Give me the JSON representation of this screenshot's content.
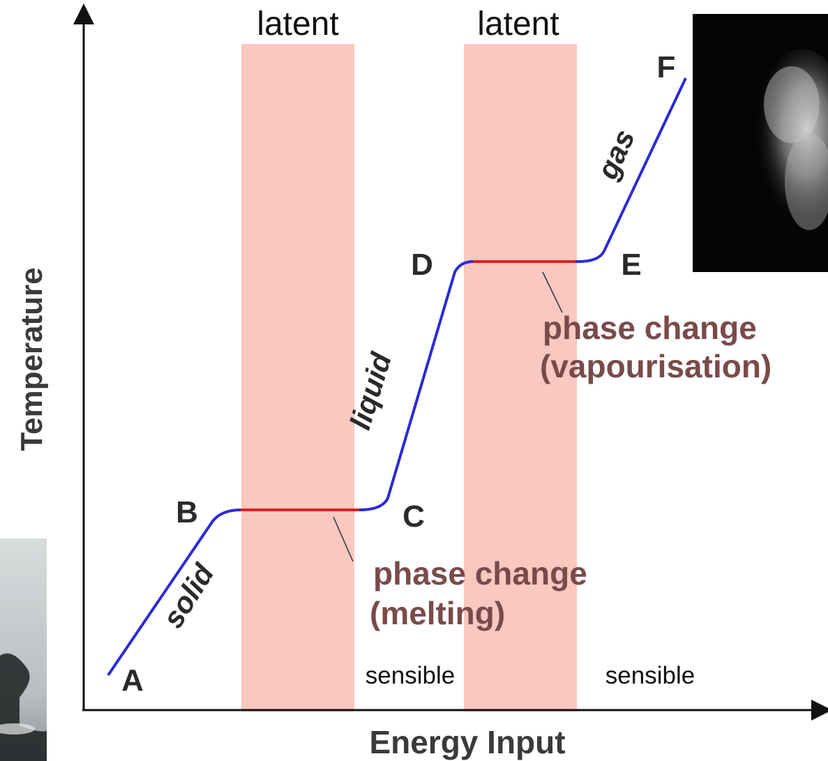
{
  "axes": {
    "y_label": "Temperature",
    "x_label": "Energy Input"
  },
  "band_labels": {
    "latent_1": "latent",
    "latent_2": "latent",
    "sensible_1": "sensible",
    "sensible_2": "sensible"
  },
  "points": {
    "a": "A",
    "b": "B",
    "c": "C",
    "d": "D",
    "e": "E",
    "f": "F"
  },
  "segment_labels": {
    "solid": "solid",
    "liquid": "liquid",
    "gas": "gas"
  },
  "annotations": {
    "melting_line1": "phase change",
    "melting_line2": "(melting)",
    "vapour_line1": "phase change",
    "vapour_line2": "(vapourisation)"
  },
  "colors": {
    "sensible_line": "#2b2bd6",
    "latent_line": "#e02020",
    "latent_band": "#f9c8c0",
    "annotation_text": "#7a4a4a",
    "axis": "#111111"
  },
  "photos": {
    "steam_photo": "steam-photo",
    "ice_photo": "ice-photo"
  }
}
